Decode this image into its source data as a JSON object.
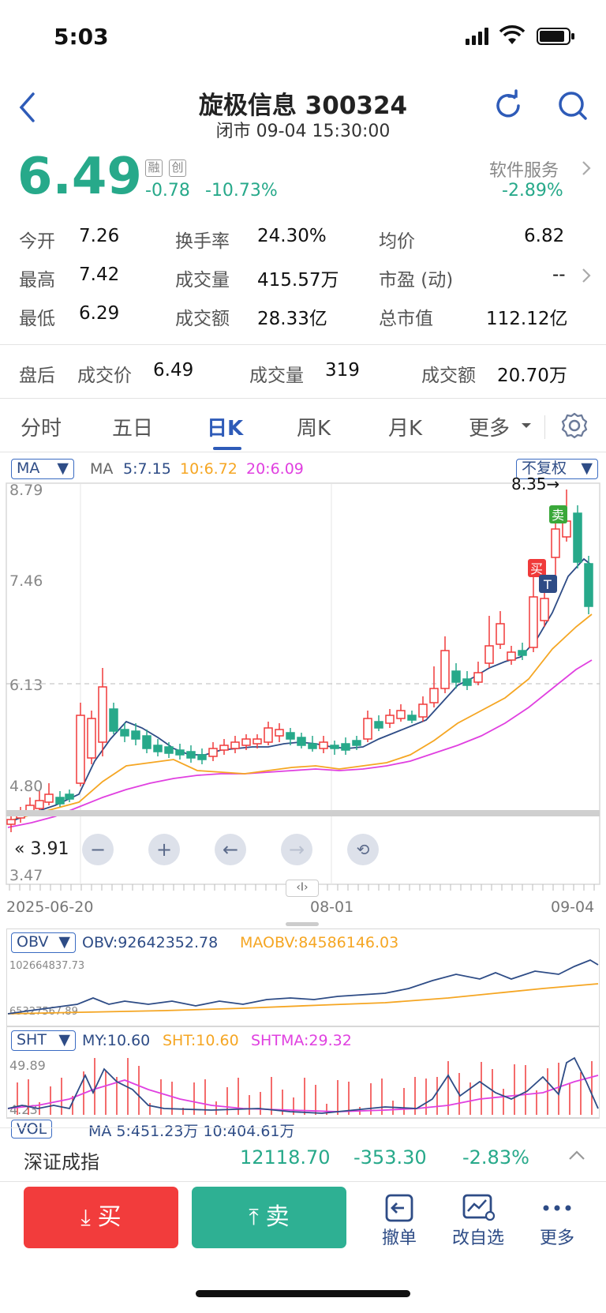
{
  "status_bar": {
    "time": "5:03"
  },
  "header": {
    "title": "旋极信息 300324",
    "subtitle": "闭市 09-04 15:30:00"
  },
  "quote": {
    "price": "6.49",
    "badges": [
      "融",
      "创"
    ],
    "change": "-0.78",
    "change_pct": "-10.73%",
    "sector_name": "软件服务",
    "sector_change": "-2.89%"
  },
  "stats": [
    {
      "label": "今开",
      "value": "7.26",
      "color": "#27a98a"
    },
    {
      "label": "换手率",
      "value": "24.30%",
      "color": "#111111"
    },
    {
      "label": "均价",
      "value": "6.82",
      "color": "#27a98a"
    },
    {
      "label": "最高",
      "value": "7.42",
      "color": "#f03a3a"
    },
    {
      "label": "成交量",
      "value": "415.57万",
      "color": "#111111"
    },
    {
      "label": "市盈 (动)",
      "value": "--",
      "color": "#111111"
    },
    {
      "label": "最低",
      "value": "6.29",
      "color": "#27a98a"
    },
    {
      "label": "成交额",
      "value": "28.33亿",
      "color": "#111111"
    },
    {
      "label": "总市值",
      "value": "112.12亿",
      "color": "#111111"
    }
  ],
  "after_hours": {
    "label": "盘后",
    "price_label": "成交价",
    "price": "6.49",
    "vol_label": "成交量",
    "vol": "319",
    "amt_label": "成交额",
    "amt": "20.70万"
  },
  "tabs": [
    "分时",
    "五日",
    "日K",
    "周K",
    "月K",
    "更多"
  ],
  "active_tab": "日K",
  "kline": {
    "indicator_select": "MA",
    "ma_prefix": "MA",
    "ma5": "5:7.15",
    "ma10": "10:6.72",
    "ma20": "20:6.09",
    "adjust_select": "不复权",
    "y_ticks": [
      "8.79",
      "7.46",
      "6.13",
      "4.80",
      "3.47"
    ],
    "max_label": "8.35→",
    "min_label": "3.91",
    "buy_marker": "买",
    "sell_marker": "卖",
    "t_marker": "T",
    "x_ticks": [
      "2025-06-20",
      "08-01",
      "09-04"
    ],
    "colors": {
      "up": "#f03a3a",
      "down": "#27a98a",
      "ma5": "#2e4c86",
      "ma10": "#f5a623",
      "ma20": "#e040e0"
    }
  },
  "obv": {
    "select": "OBV",
    "obv_label": "OBV:92642352.78",
    "maobv_label": "MAOBV:84586146.03",
    "top_tick": "102664837.73",
    "bottom_tick": "65327567.89"
  },
  "sht": {
    "select": "SHT",
    "my_label": "MY:10.60",
    "sht_label": "SHT:10.60",
    "shtma_label": "SHTMA:29.32",
    "top_tick": "49.89",
    "bottom_tick": "4.23"
  },
  "vol_partial": {
    "select": "VOL",
    "text": "MA 5:451.23万 10:404.61万"
  },
  "index_bar": {
    "name": "深证成指",
    "value": "12118.70",
    "change": "-353.30",
    "pct": "-2.83%"
  },
  "actions": {
    "buy": "买",
    "sell": "卖",
    "cancel": "撤单",
    "watchlist": "改自选",
    "more": "更多"
  }
}
